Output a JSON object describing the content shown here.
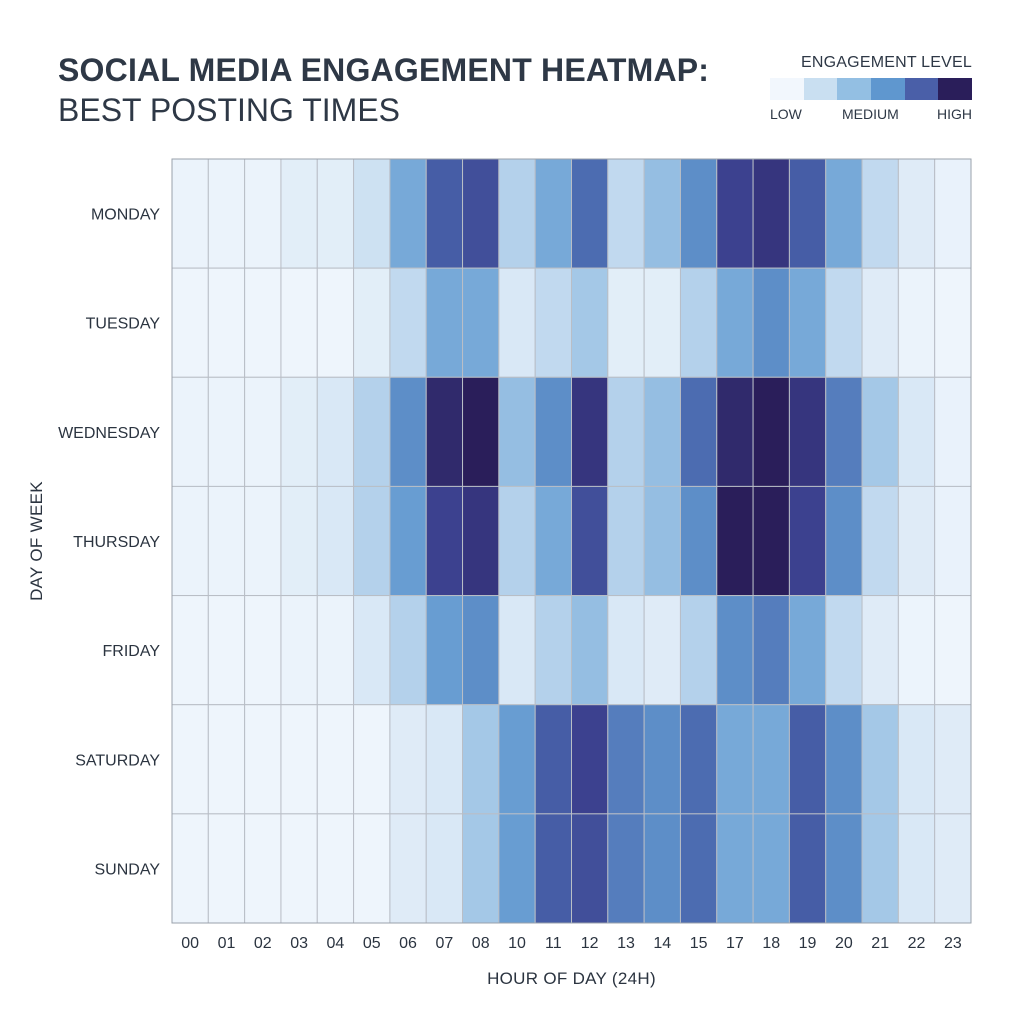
{
  "header": {
    "title_line1": "SOCIAL MEDIA ENGAGEMENT HEATMAP:",
    "title_line2": "BEST POSTING TIMES"
  },
  "legend": {
    "title": "ENGAGEMENT LEVEL",
    "low": "LOW",
    "medium": "MEDIUM",
    "high": "HIGH",
    "colors": [
      "#f2f7fd",
      "#c9dff1",
      "#93bfe3",
      "#5f97cf",
      "#4a5fa8",
      "#2a1e5a"
    ]
  },
  "chart_data": {
    "type": "heatmap",
    "title": "SOCIAL MEDIA ENGAGEMENT HEATMAP: BEST POSTING TIMES",
    "xlabel": "HOUR OF DAY (24H)",
    "ylabel": "DAY OF WEEK",
    "x_categories": [
      "00",
      "01",
      "02",
      "03",
      "04",
      "05",
      "06",
      "07",
      "08",
      "10",
      "11",
      "12",
      "13",
      "14",
      "15",
      "17",
      "18",
      "19",
      "20",
      "21",
      "22",
      "23"
    ],
    "y_categories": [
      "MONDAY",
      "TUESDAY",
      "WEDNESDAY",
      "THURSDAY",
      "FRIDAY",
      "SATURDAY",
      "SUNDAY"
    ],
    "value_range": [
      0,
      10
    ],
    "colorscale": [
      "#f3f8fe",
      "#dbe9f6",
      "#b8d4ec",
      "#8cb9e0",
      "#6298cf",
      "#4a67ae",
      "#3b3f8d",
      "#2a1e5a"
    ],
    "values": [
      [
        0.5,
        0.5,
        0.5,
        1,
        1,
        2,
        5,
        7.5,
        8,
        3,
        5,
        7,
        2.5,
        4,
        6,
        8.5,
        9,
        7.5,
        5,
        2.5,
        1.2,
        0.6
      ],
      [
        0.3,
        0.3,
        0.3,
        0.3,
        0.3,
        1,
        2.5,
        5,
        5,
        1.5,
        2.5,
        3.5,
        1,
        1,
        3,
        5,
        6,
        5,
        2.5,
        1.2,
        0.5,
        0.3
      ],
      [
        0.5,
        0.5,
        0.5,
        1,
        1.5,
        3,
        6,
        9.5,
        10,
        4,
        6,
        9,
        3,
        4,
        7,
        9.5,
        10,
        9,
        6.5,
        3.5,
        1.5,
        0.6
      ],
      [
        0.5,
        0.5,
        0.5,
        1,
        1.5,
        3,
        5.5,
        8.5,
        9,
        3,
        5,
        8,
        3,
        4,
        6,
        10,
        10,
        8.5,
        6,
        2.5,
        1.2,
        0.6
      ],
      [
        0.3,
        0.3,
        0.3,
        0.5,
        0.5,
        1.5,
        3,
        5.5,
        6,
        1.5,
        3,
        4,
        1.5,
        1.2,
        3,
        6,
        6.5,
        5,
        2.5,
        1.2,
        0.4,
        0.3
      ],
      [
        0.3,
        0.3,
        0.3,
        0.3,
        0.3,
        0.3,
        1.2,
        1.5,
        3.5,
        5.5,
        7.5,
        8.5,
        6.5,
        6,
        7,
        5,
        5,
        7.5,
        6,
        3.5,
        1.5,
        1.2
      ],
      [
        0.3,
        0.3,
        0.3,
        0.3,
        0.3,
        0.3,
        1.2,
        1.5,
        3.5,
        5.5,
        7.5,
        8,
        6.5,
        6,
        7,
        5,
        5,
        7.5,
        6,
        3.5,
        1.5,
        1.2
      ]
    ]
  }
}
